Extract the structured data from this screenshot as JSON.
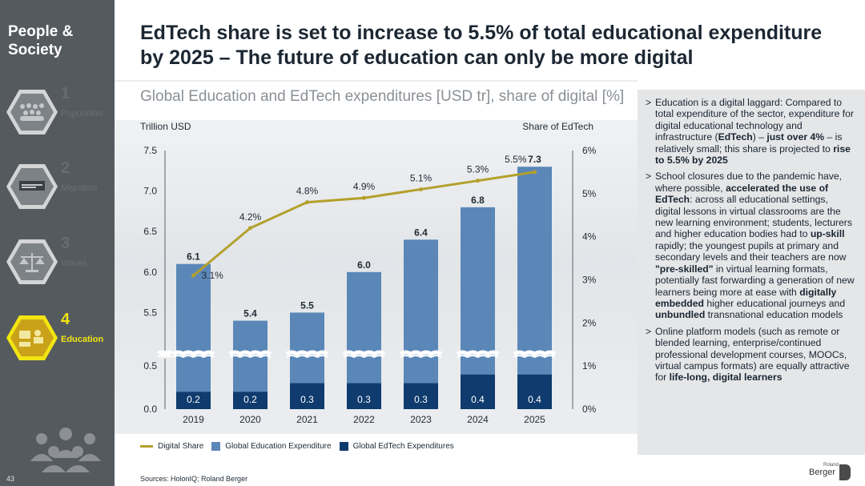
{
  "sidebar": {
    "section_title": "People &\nSociety",
    "items": [
      {
        "num": "1",
        "label": "Population",
        "icon": "crowd-icon"
      },
      {
        "num": "2",
        "label": "Migration",
        "icon": "immigration-sign-icon"
      },
      {
        "num": "3",
        "label": "Values",
        "icon": "scales-icon"
      },
      {
        "num": "4",
        "label": "Education",
        "icon": "classroom-icon"
      }
    ],
    "page_number": "43"
  },
  "headline": "EdTech share is set to increase to 5.5% of total educational expenditure by 2025 – The future of education can only be more digital",
  "subtitle": "Global Education and EdTech expenditures [USD tr], share of digital [%]",
  "colors": {
    "education_bar": "#5b87b8",
    "edtech_bar": "#0f3b6e",
    "digital_line": "#b3a02c",
    "sidebar": "#555a5f",
    "active_accent": "#f3e512"
  },
  "chart_data": {
    "type": "bar",
    "categories": [
      "2019",
      "2020",
      "2021",
      "2022",
      "2023",
      "2024",
      "2025"
    ],
    "left_axis_title": "Trillion USD",
    "right_axis_title": "Share of EdTech",
    "left_ticks": [
      "7.5",
      "7.0",
      "6.5",
      "6.0",
      "5.5",
      "0.5",
      "0.0"
    ],
    "right_ticks": [
      "6%",
      "5%",
      "4%",
      "3%",
      "2%",
      "1%",
      "0%"
    ],
    "axis_break": true,
    "series": [
      {
        "name": "Global Education Expenditure",
        "values": [
          6.1,
          5.4,
          5.5,
          6.0,
          6.4,
          6.8,
          7.3
        ],
        "labels": [
          "6.1",
          "5.4",
          "5.5",
          "6.0",
          "6.4",
          "6.8",
          "7.3"
        ]
      },
      {
        "name": "Global EdTech Expenditures",
        "values": [
          0.2,
          0.2,
          0.3,
          0.3,
          0.3,
          0.4,
          0.4
        ],
        "labels": [
          "0.2",
          "0.2",
          "0.3",
          "0.3",
          "0.3",
          "0.4",
          "0.4"
        ]
      },
      {
        "name": "Digital Share",
        "values": [
          3.1,
          4.2,
          4.8,
          4.9,
          5.1,
          5.3,
          5.5
        ],
        "labels": [
          "3.1%",
          "4.2%",
          "4.8%",
          "4.9%",
          "5.1%",
          "5.3%",
          "5.5%"
        ],
        "axis": "right"
      }
    ],
    "legend": [
      "Digital Share",
      "Global Education Expenditure",
      "Global EdTech Expenditures"
    ],
    "legend_position": "bottom"
  },
  "panel": {
    "bullets": [
      [
        {
          "t": "Education is a digital laggard: Compared to total expenditure of the sector, expenditure for digital educational technology and infrastructure ("
        },
        {
          "t": "EdTech",
          "b": true
        },
        {
          "t": ") – "
        },
        {
          "t": "just over 4%",
          "b": true
        },
        {
          "t": " – is relatively small; this share is projected to "
        },
        {
          "t": "rise to 5.5% by 2025",
          "b": true
        }
      ],
      [
        {
          "t": "School closures due to the pandemic have, where possible, "
        },
        {
          "t": "accelerated the use of EdTech",
          "b": true
        },
        {
          "t": ": across all educational settings, digital lessons in virtual classrooms are the new learning environment; students, lecturers and higher education bodies had to "
        },
        {
          "t": "up-skill",
          "b": true
        },
        {
          "t": " rapidly; the youngest pupils at primary and secondary levels and their teachers are now "
        },
        {
          "t": "\"pre-skilled\"",
          "b": true
        },
        {
          "t": " in virtual learning formats, potentially fast forwarding a generation of new learners being more at ease with "
        },
        {
          "t": "digitally embedded",
          "b": true
        },
        {
          "t": " higher educational journeys and "
        },
        {
          "t": "unbundled",
          "b": true
        },
        {
          "t": " transnational education models"
        }
      ],
      [
        {
          "t": "Online platform models (such as remote or blended learning, enterprise/continued professional development courses, MOOCs, virtual campus formats) are equally attractive for "
        },
        {
          "t": "life-long, digital learners",
          "b": true
        }
      ]
    ]
  },
  "sources": "Sources: HolonIQ; Roland Berger",
  "logo": {
    "small": "Roland",
    "big": "Berger"
  }
}
